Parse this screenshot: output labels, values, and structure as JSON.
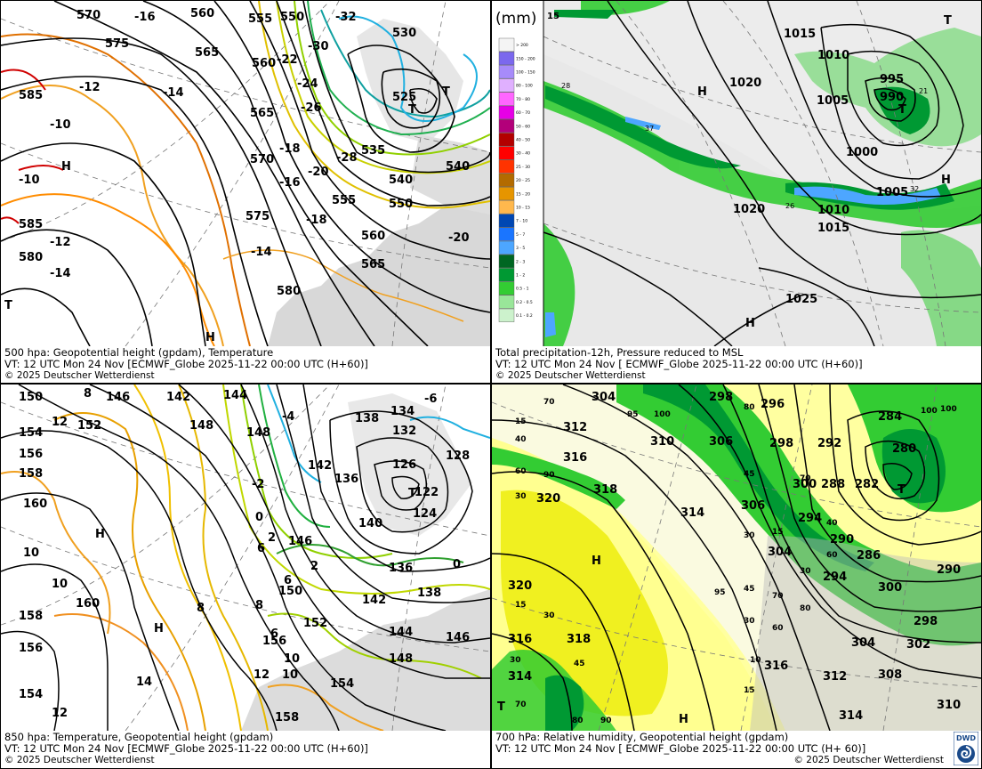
{
  "panels": {
    "p500": {
      "caption_line1": "500 hpa: Geopotential height (gpdam), Temperature",
      "caption_line2": "VT: 12 UTC Mon  24 Nov [ECMWF_Globe 2025-11-22 00:00 UTC (H+60)]",
      "caption_line3": "© 2025 Deutscher Wetterdienst",
      "height_labels": [
        "570",
        "560",
        "555",
        "550",
        "575",
        "565",
        "560",
        "565",
        "570",
        "575",
        "580",
        "585",
        "585",
        "580",
        "530",
        "525",
        "535",
        "540",
        "550",
        "555",
        "560",
        "565",
        "540"
      ],
      "temperature_labels": [
        "-16",
        "-12",
        "-14",
        "-10",
        "-10",
        "-12",
        "-14",
        "-22",
        "-24",
        "-26",
        "-30",
        "-32",
        "-18",
        "-16",
        "-20",
        "-28",
        "-18",
        "-14",
        "-20"
      ],
      "pressure_centers": [
        "H",
        "H",
        "T",
        "T",
        "T"
      ]
    },
    "pprecip": {
      "caption_line1": "Total precipitation-12h, Pressure reduced to MSL",
      "caption_line2": "VT: 12 UTC Mon  24 Nov [ ECMWF_Globe 2025-11-22 00:00 UTC (H+60)]",
      "caption_line3": "© 2025 Deutscher Wetterdienst",
      "legend_unit": "(mm)",
      "legend": [
        {
          "label": "> 200",
          "color": "#f4f4f4"
        },
        {
          "label": "150 - 200",
          "color": "#7b68ee"
        },
        {
          "label": "100 - 150",
          "color": "#a78bfa"
        },
        {
          "label": "80 - 100",
          "color": "#e0b0ff"
        },
        {
          "label": "70 - 80",
          "color": "#ff66ff"
        },
        {
          "label": "60 - 70",
          "color": "#e600e6"
        },
        {
          "label": "50 - 60",
          "color": "#b3007a"
        },
        {
          "label": "40 - 50",
          "color": "#b30000"
        },
        {
          "label": "30 - 40",
          "color": "#ff0000"
        },
        {
          "label": "25 - 30",
          "color": "#ff3300"
        },
        {
          "label": "20 - 25",
          "color": "#b36b00"
        },
        {
          "label": "15 - 20",
          "color": "#e69500"
        },
        {
          "label": "10 - 15",
          "color": "#ffb84d"
        },
        {
          "label": "7 - 10",
          "color": "#0047b3"
        },
        {
          "label": "5 - 7",
          "color": "#1a75ff"
        },
        {
          "label": "3 - 5",
          "color": "#4da6ff"
        },
        {
          "label": "2 - 3",
          "color": "#006622"
        },
        {
          "label": "1 - 2",
          "color": "#009933"
        },
        {
          "label": "0.5 - 1",
          "color": "#33cc33"
        },
        {
          "label": "0.2 - 0.5",
          "color": "#99e699"
        },
        {
          "label": "0.1 - 0.2",
          "color": "#ccf2cc"
        }
      ],
      "pressure_labels": [
        "1015",
        "1010",
        "1020",
        "995",
        "990",
        "1005",
        "1000",
        "1005",
        "1020",
        "1010",
        "1015",
        "1025"
      ],
      "pressure_centers": [
        "H",
        "T",
        "T",
        "H",
        "H"
      ],
      "small_values": [
        "15",
        "28",
        "37",
        "21",
        "26",
        "32"
      ]
    },
    "p850": {
      "caption_line1": "850 hpa:  Temperature, Geopotential height (gpdam)",
      "caption_line2": "VT: 12 UTC Mon  24 Nov [ECMWF_Globe 2025-11-22 00:00 UTC (H+60)]",
      "caption_line3": "© 2025 Deutscher Wetterdienst",
      "height_labels": [
        "150",
        "146",
        "142",
        "144",
        "154",
        "152",
        "156",
        "148",
        "148",
        "158",
        "160",
        "138",
        "134",
        "132",
        "128",
        "126",
        "122",
        "124",
        "142",
        "136",
        "140",
        "136",
        "146",
        "150",
        "152",
        "156",
        "138",
        "142",
        "144",
        "148",
        "146",
        "158",
        "156",
        "154",
        "158",
        "160",
        "154"
      ],
      "temperature_labels": [
        "8",
        "12",
        "10",
        "10",
        "-4",
        "-2",
        "-6",
        "0",
        "2",
        "6",
        "2",
        "6",
        "8",
        "8",
        "10",
        "12",
        "14",
        "12",
        "10",
        "6",
        "4",
        "2",
        "0",
        "-2"
      ],
      "pressure_centers": [
        "H",
        "H",
        "T"
      ]
    },
    "p700": {
      "caption_line1": "700 hPa:  Relative humidity, Geopotential height (gpdam)",
      "caption_line2": "VT: 12 UTC Mon  24 Nov [ ECMWF_Globe 2025-11-22 00:00 UTC (H+ 60)]",
      "caption_line3": "© 2025 Deutscher Wetterdienst",
      "logo_text": "DWD",
      "height_labels": [
        "304",
        "298",
        "296",
        "284",
        "312",
        "310",
        "306",
        "298",
        "292",
        "280",
        "316",
        "318",
        "314",
        "306",
        "300",
        "288",
        "282",
        "320",
        "304",
        "294",
        "290",
        "286",
        "290",
        "294",
        "300",
        "298",
        "302",
        "304",
        "308",
        "310",
        "312",
        "314",
        "316",
        "318",
        "316",
        "314",
        "320"
      ],
      "humidity_labels": [
        "70",
        "95",
        "100",
        "15",
        "40",
        "30",
        "80",
        "100",
        "60",
        "90",
        "45",
        "70",
        "30",
        "15",
        "95",
        "45",
        "70",
        "30",
        "60",
        "80",
        "15",
        "30",
        "45",
        "10",
        "15",
        "30",
        "70",
        "80",
        "90",
        "60",
        "30",
        "40",
        "100"
      ],
      "pressure_centers": [
        "H",
        "T",
        "T",
        "H"
      ]
    }
  }
}
